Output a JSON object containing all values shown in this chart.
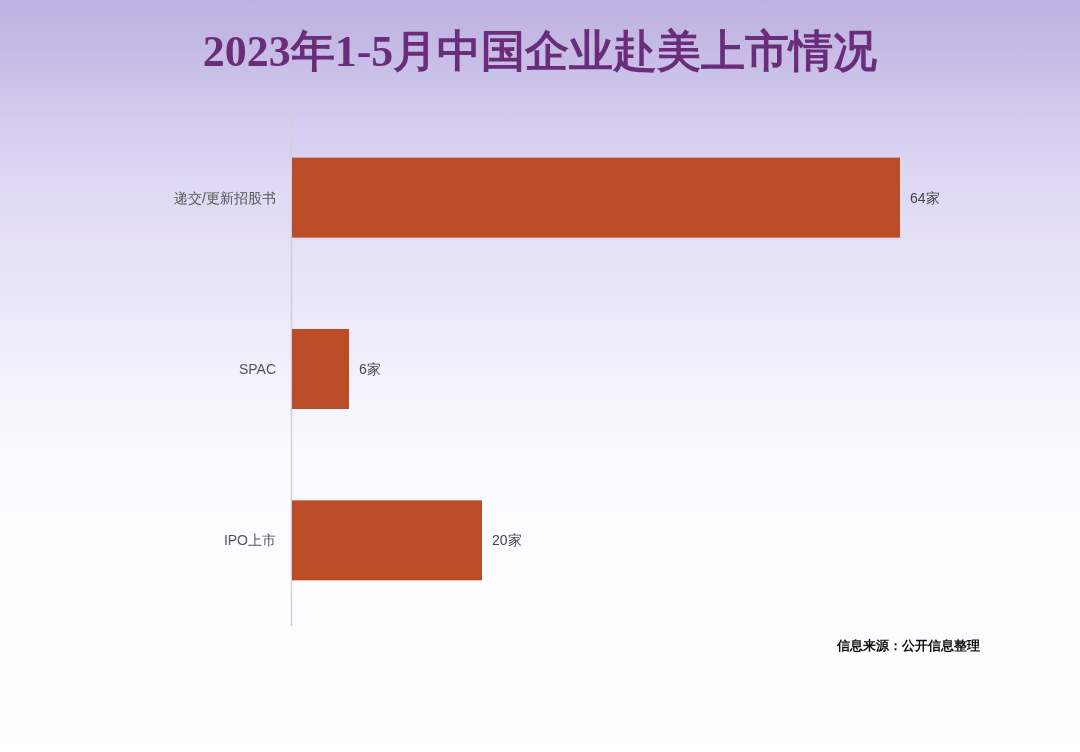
{
  "chart_data": {
    "type": "bar",
    "orientation": "horizontal",
    "title": "2023年1-5月中国企业赴美上市情况",
    "categories": [
      "递交/更新招股书",
      "SPAC",
      "IPO上市"
    ],
    "values": [
      64,
      6,
      20
    ],
    "value_labels": [
      "64家",
      "6家",
      "20家"
    ],
    "color": "#ba4d27",
    "annotations": [
      "信息来源：公开信息整理"
    ]
  }
}
